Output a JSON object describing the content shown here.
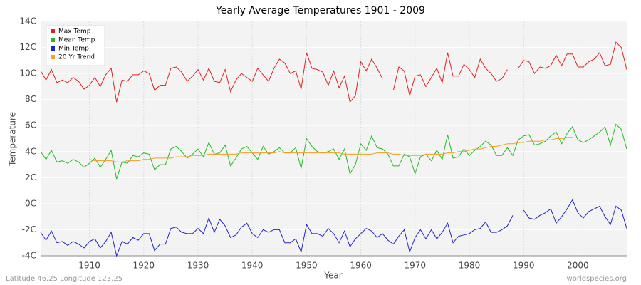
{
  "chart_data": {
    "type": "line",
    "title": "Yearly Average Temperatures 1901 - 2009",
    "xlabel": "Year",
    "ylabel": "Temperature",
    "footer_left": "Latitude 46.25 Longitude 123.25",
    "footer_right": "worldspecies.org",
    "x": [
      1901,
      1902,
      1903,
      1904,
      1905,
      1906,
      1907,
      1908,
      1909,
      1910,
      1911,
      1912,
      1913,
      1914,
      1915,
      1916,
      1917,
      1918,
      1919,
      1920,
      1921,
      1922,
      1923,
      1924,
      1925,
      1926,
      1927,
      1928,
      1929,
      1930,
      1931,
      1932,
      1933,
      1934,
      1935,
      1936,
      1937,
      1938,
      1939,
      1940,
      1941,
      1942,
      1943,
      1944,
      1945,
      1946,
      1947,
      1948,
      1949,
      1950,
      1951,
      1952,
      1953,
      1954,
      1955,
      1956,
      1957,
      1958,
      1959,
      1960,
      1961,
      1962,
      1963,
      1964,
      1965,
      1966,
      1967,
      1968,
      1969,
      1970,
      1971,
      1972,
      1973,
      1974,
      1975,
      1976,
      1977,
      1978,
      1979,
      1980,
      1981,
      1982,
      1983,
      1984,
      1985,
      1986,
      1987,
      1988,
      1989,
      1990,
      1991,
      1992,
      1993,
      1994,
      1995,
      1996,
      1997,
      1998,
      1999,
      2000,
      2001,
      2002,
      2003,
      2004,
      2005,
      2006,
      2007,
      2008,
      2009
    ],
    "xlim": [
      1901,
      2009
    ],
    "xticks": [
      1910,
      1920,
      1930,
      1940,
      1950,
      1960,
      1970,
      1980,
      1990,
      2000
    ],
    "ylim": [
      -4,
      14
    ],
    "yticks": [
      {
        "value": -4,
        "label": "-4C"
      },
      {
        "value": -2,
        "label": "-2C"
      },
      {
        "value": 0,
        "label": "0C"
      },
      {
        "value": 2,
        "label": "2C"
      },
      {
        "value": 4,
        "label": "4C"
      },
      {
        "value": 6,
        "label": "6C"
      },
      {
        "value": 8,
        "label": "8C"
      },
      {
        "value": 10,
        "label": "10C"
      },
      {
        "value": 12,
        "label": "12C"
      },
      {
        "value": 14,
        "label": "14C"
      }
    ],
    "grid": true,
    "legend": "upper left",
    "series": [
      {
        "name": "Max Temp",
        "color": "#e02020",
        "values": [
          10.2,
          9.5,
          10.3,
          9.3,
          9.5,
          9.3,
          9.7,
          9.4,
          8.8,
          9.1,
          9.7,
          9.0,
          9.9,
          10.4,
          7.8,
          9.5,
          9.4,
          9.9,
          9.9,
          10.2,
          10.0,
          8.7,
          9.1,
          9.1,
          10.4,
          10.5,
          10.1,
          9.4,
          9.8,
          10.3,
          9.5,
          10.4,
          9.4,
          9.3,
          10.3,
          8.6,
          9.5,
          10.0,
          9.7,
          9.4,
          10.4,
          9.9,
          9.4,
          10.4,
          11.1,
          10.8,
          10.0,
          10.2,
          8.8,
          11.6,
          10.4,
          10.3,
          10.1,
          9.1,
          10.2,
          8.9,
          9.8,
          7.8,
          8.3,
          10.9,
          10.2,
          11.1,
          10.4,
          9.6,
          null,
          8.7,
          10.5,
          10.2,
          8.3,
          9.8,
          9.9,
          9.0,
          9.7,
          10.4,
          9.3,
          11.6,
          9.8,
          9.8,
          10.7,
          10.3,
          9.7,
          11.1,
          10.4,
          10.0,
          9.4,
          9.6,
          10.3,
          null,
          10.4,
          11.0,
          10.9,
          10.0,
          10.5,
          10.4,
          10.6,
          11.4,
          10.6,
          11.5,
          11.5,
          10.5,
          10.5,
          10.9,
          11.1,
          11.6,
          10.6,
          10.7,
          12.4,
          12.0,
          10.3
        ]
      },
      {
        "name": "Mean Temp",
        "color": "#22bb22",
        "values": [
          4.0,
          3.4,
          4.1,
          3.2,
          3.3,
          3.1,
          3.4,
          3.2,
          2.8,
          3.1,
          3.5,
          2.8,
          3.4,
          4.1,
          1.9,
          3.2,
          3.1,
          3.7,
          3.6,
          3.9,
          3.8,
          2.6,
          3.0,
          3.0,
          4.2,
          4.4,
          4.0,
          3.5,
          3.8,
          4.2,
          3.6,
          4.7,
          3.8,
          3.9,
          4.5,
          2.9,
          3.5,
          4.2,
          4.4,
          3.9,
          3.4,
          4.4,
          3.8,
          4.0,
          4.3,
          3.9,
          3.9,
          4.3,
          2.7,
          5.0,
          4.4,
          4.0,
          3.9,
          4.0,
          4.2,
          3.4,
          4.2,
          2.3,
          3.0,
          4.6,
          4.1,
          5.2,
          4.3,
          4.2,
          3.8,
          2.9,
          2.9,
          3.8,
          3.6,
          2.3,
          3.6,
          3.8,
          3.3,
          4.1,
          3.4,
          5.3,
          3.5,
          3.6,
          4.2,
          3.7,
          4.1,
          4.4,
          4.8,
          4.5,
          3.7,
          3.7,
          4.3,
          3.7,
          4.9,
          5.2,
          5.3,
          4.5,
          4.6,
          4.8,
          5.2,
          5.5,
          4.6,
          5.4,
          5.9,
          4.9,
          4.7,
          4.9,
          5.2,
          5.5,
          5.9,
          4.5,
          6.1,
          5.7,
          4.2
        ]
      },
      {
        "name": "Min Temp",
        "color": "#2222cc",
        "values": [
          -2.2,
          -2.8,
          -2.1,
          -3.0,
          -2.9,
          -3.2,
          -2.9,
          -3.1,
          -3.4,
          -2.9,
          -2.7,
          -3.4,
          -2.9,
          -2.2,
          -4.0,
          -2.9,
          -3.1,
          -2.6,
          -2.8,
          -2.3,
          -2.3,
          -3.6,
          -3.1,
          -3.1,
          -1.9,
          -1.8,
          -2.2,
          -2.3,
          -2.3,
          -1.9,
          -2.3,
          -1.1,
          -2.2,
          -1.2,
          -1.7,
          -2.6,
          -2.4,
          -1.8,
          -1.5,
          -2.3,
          -2.6,
          -2.0,
          -2.2,
          -2.0,
          -2.0,
          -3.0,
          -3.0,
          -2.7,
          -3.7,
          -1.6,
          -2.3,
          -2.3,
          -2.5,
          -1.9,
          -2.3,
          -3.0,
          -2.1,
          -3.3,
          -2.7,
          -2.3,
          -1.9,
          -2.1,
          -2.6,
          -2.3,
          -2.8,
          -3.1,
          -2.5,
          -2.0,
          -3.7,
          -2.6,
          -2.0,
          -2.7,
          -2.0,
          -2.7,
          -2.2,
          -1.5,
          -3.0,
          -2.5,
          -2.4,
          -2.3,
          -2.0,
          -1.9,
          -1.4,
          -2.2,
          -2.2,
          -2.0,
          -1.7,
          -0.9,
          null,
          -0.5,
          -1.1,
          -1.2,
          -0.9,
          -0.7,
          -0.4,
          -1.5,
          -1.0,
          -0.4,
          0.3,
          -0.7,
          -1.1,
          -0.6,
          -0.4,
          -0.2,
          -1.0,
          -1.6,
          -0.2,
          -0.5,
          -1.9
        ]
      },
      {
        "name": "20 Yr Trend",
        "color": "#f5a020",
        "values": [
          null,
          null,
          null,
          null,
          null,
          null,
          null,
          null,
          null,
          3.4,
          3.3,
          3.3,
          3.3,
          3.3,
          3.2,
          3.2,
          3.3,
          3.3,
          3.3,
          3.4,
          3.4,
          3.5,
          3.5,
          3.5,
          3.5,
          3.6,
          3.6,
          3.6,
          3.7,
          3.7,
          3.7,
          3.8,
          3.8,
          3.8,
          3.8,
          3.8,
          3.8,
          3.9,
          3.9,
          3.9,
          3.9,
          3.9,
          3.9,
          3.9,
          4.0,
          3.9,
          3.9,
          3.9,
          3.9,
          3.9,
          3.9,
          3.9,
          3.9,
          3.9,
          3.9,
          3.9,
          3.8,
          3.8,
          3.8,
          3.8,
          3.8,
          3.8,
          3.9,
          3.9,
          3.9,
          3.8,
          3.8,
          3.7,
          3.7,
          3.7,
          3.7,
          3.8,
          3.8,
          3.8,
          3.8,
          3.9,
          3.9,
          4.0,
          4.0,
          4.1,
          4.2,
          4.2,
          4.3,
          4.4,
          4.4,
          4.5,
          4.6,
          4.6,
          4.7,
          4.7,
          4.8,
          4.8,
          4.8,
          4.9,
          4.9,
          5.0,
          5.0,
          5.1,
          5.1,
          null,
          null,
          null,
          null,
          null,
          null,
          null,
          null,
          null,
          null
        ]
      }
    ]
  }
}
